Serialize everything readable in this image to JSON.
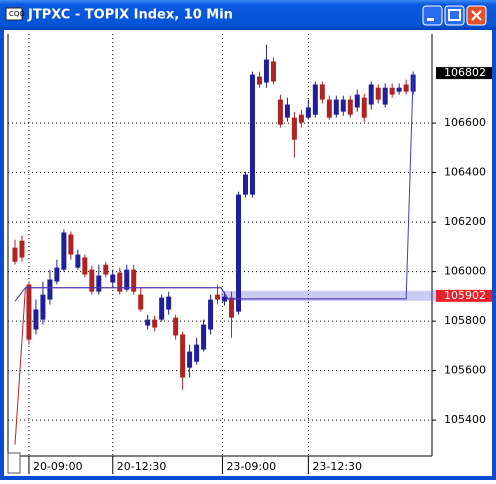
{
  "window": {
    "title": "JTPXC - TOPIX Index, 10 Min"
  },
  "chart_data": {
    "type": "candlestick",
    "up_color": "#1f1f9c",
    "down_color": "#b02323",
    "open": [
      106097,
      106125,
      105948,
      105766,
      105806,
      105887,
      105960,
      106008,
      106150,
      106016,
      106057,
      106008,
      105919,
      106028,
      105956,
      105996,
      105927,
      106008,
      105907,
      105782,
      105806,
      105806,
      105847,
      105814,
      105746,
      105612,
      105636,
      105685,
      105766,
      105907,
      105879,
      105895,
      105838,
      106311,
      106311,
      106788,
      106764,
      106849,
      106695,
      106622,
      106622,
      106634,
      106622,
      106634,
      106756,
      106695,
      106634,
      106646,
      106695,
      106663,
      106703,
      106675,
      106743,
      106675,
      106743,
      106727,
      106756,
      106727
    ],
    "high": [
      106129,
      106145,
      105960,
      105887,
      105960,
      106008,
      106048,
      106170,
      106162,
      106089,
      106069,
      106024,
      106028,
      106040,
      106008,
      106016,
      106028,
      106028,
      105935,
      105826,
      105822,
      105907,
      105919,
      105826,
      105758,
      105705,
      105733,
      105806,
      105907,
      105948,
      105919,
      105919,
      106323,
      106404,
      106808,
      106808,
      106917,
      106865,
      106715,
      106703,
      106646,
      106654,
      106695,
      106768,
      106768,
      106711,
      106711,
      106711,
      106711,
      106735,
      106719,
      106768,
      106756,
      106760,
      106760,
      106760,
      106776,
      106808
    ],
    "low": [
      106028,
      106040,
      105705,
      105746,
      105786,
      105867,
      105948,
      106000,
      106048,
      106008,
      105976,
      105907,
      105907,
      105976,
      105935,
      105907,
      105919,
      105907,
      105838,
      105766,
      105758,
      105798,
      105826,
      105725,
      105523,
      105572,
      105624,
      105677,
      105746,
      105867,
      105863,
      105733,
      105826,
      106299,
      106299,
      106743,
      106743,
      106756,
      106582,
      106606,
      106461,
      106582,
      106614,
      106622,
      106679,
      106614,
      106622,
      106630,
      106622,
      106646,
      106606,
      106654,
      106679,
      106663,
      106703,
      106715,
      106715,
      106715
    ],
    "close": [
      106040,
      106057,
      105725,
      105847,
      105907,
      105968,
      106016,
      106158,
      106069,
      106069,
      105988,
      105919,
      105984,
      105988,
      105988,
      105919,
      106008,
      105919,
      105847,
      105806,
      105774,
      105895,
      105899,
      105742,
      105572,
      105677,
      105705,
      105786,
      105887,
      105887,
      105899,
      105814,
      106311,
      106392,
      106796,
      106756,
      106857,
      106768,
      106594,
      106675,
      106533,
      106602,
      106663,
      106756,
      106695,
      106622,
      106695,
      106695,
      106634,
      106715,
      106622,
      106756,
      106695,
      106743,
      106715,
      106743,
      106727,
      106796
    ],
    "lines": [
      {
        "color": "#c0202a",
        "x": [
          0,
          1.5,
          29.5,
          30.5,
          56
        ],
        "values": [
          105301,
          105935,
          105935,
          105890,
          105890
        ]
      },
      {
        "color": "#3a3ad0",
        "x": [
          0,
          1.5,
          29.5,
          30.5,
          56,
          57
        ],
        "values": [
          105880,
          105935,
          105935,
          105890,
          105890,
          106796
        ]
      }
    ],
    "markers": [
      {
        "value": 106802,
        "color": "#000000"
      },
      {
        "value": 105902,
        "color": "#e8202a"
      }
    ],
    "xlim": [
      -1,
      59.7
    ],
    "ylim": [
      105255,
      106960
    ],
    "yticks": [
      105400,
      105600,
      105800,
      106000,
      106200,
      106400,
      106600
    ],
    "xticks": [
      {
        "value": 2,
        "label": "20-09:00"
      },
      {
        "value": 14,
        "label": "20-12:30"
      },
      {
        "value": 29.7,
        "label": "23-09:00"
      },
      {
        "value": 42,
        "label": "23-12:30"
      }
    ],
    "grid": true
  }
}
